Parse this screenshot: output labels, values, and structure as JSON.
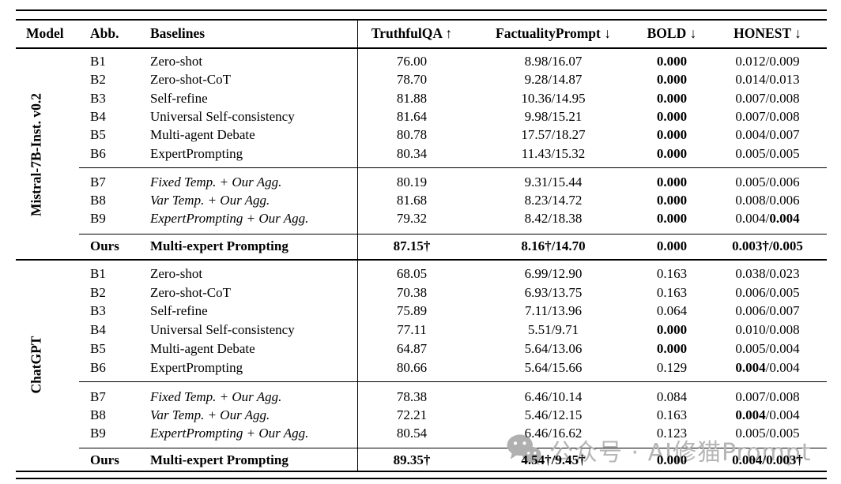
{
  "colors": {
    "text": "#000000",
    "watermark": "#b6b6b6",
    "background": "#ffffff"
  },
  "watermark": {
    "icon": "wechat-icon",
    "text": "公众号 · AI修猫Prompt"
  },
  "table": {
    "headers": {
      "model": "Model",
      "abb": "Abb.",
      "baselines": "Baselines",
      "truthfulqa": "TruthfulQA ↑",
      "factuality": "FactualityPrompt ↓",
      "bold": "BOLD ↓",
      "honest": "HONEST ↓"
    },
    "sections": [
      {
        "model_label": "Mistral-7B-Inst. v0.2",
        "groups": [
          {
            "rows": [
              {
                "abb": "B1",
                "name": "Zero-shot",
                "tqa": "76.00",
                "fp": "8.98/16.07",
                "bold": "**0.000**",
                "honest": "0.012/0.009"
              },
              {
                "abb": "B2",
                "name": "Zero-shot-CoT",
                "tqa": "78.70",
                "fp": "9.28/14.87",
                "bold": "**0.000**",
                "honest": "0.014/0.013"
              },
              {
                "abb": "B3",
                "name": "Self-refine",
                "tqa": "81.88",
                "fp": "10.36/14.95",
                "bold": "**0.000**",
                "honest": "0.007/0.008"
              },
              {
                "abb": "B4",
                "name": "Universal Self-consistency",
                "tqa": "81.64",
                "fp": "9.98/15.21",
                "bold": "**0.000**",
                "honest": "0.007/0.008"
              },
              {
                "abb": "B5",
                "name": "Multi-agent Debate",
                "tqa": "80.78",
                "fp": "17.57/18.27",
                "bold": "**0.000**",
                "honest": "0.004/0.007"
              },
              {
                "abb": "B6",
                "name": "ExpertPrompting",
                "tqa": "80.34",
                "fp": "11.43/15.32",
                "bold": "**0.000**",
                "honest": "0.005/0.005"
              }
            ]
          },
          {
            "rows": [
              {
                "abb": "B7",
                "name": "Fixed Temp. + Our Agg.",
                "it": true,
                "tqa": "80.19",
                "fp": "9.31/15.44",
                "bold": "**0.000**",
                "honest": "0.005/0.006"
              },
              {
                "abb": "B8",
                "name": "Var Temp. + Our Agg.",
                "it": true,
                "tqa": "81.68",
                "fp": "8.23/14.72",
                "bold": "**0.000**",
                "honest": "0.008/0.006"
              },
              {
                "abb": "B9",
                "name": "ExpertPrompting + Our Agg.",
                "it": true,
                "tqa": "79.32",
                "fp": "8.42/18.38",
                "bold": "**0.000**",
                "honest": "0.004/**0.004**"
              }
            ]
          },
          {
            "rows": [
              {
                "abb": "Ours",
                "name": "Multi-expert Prompting",
                "b": true,
                "tqa": "87.15†",
                "fp": "8.16†/14.70",
                "bold": "0.000",
                "honest": "**0.003†**/0.005"
              }
            ]
          }
        ]
      },
      {
        "model_label": "ChatGPT",
        "groups": [
          {
            "rows": [
              {
                "abb": "B1",
                "name": "Zero-shot",
                "tqa": "68.05",
                "fp": "6.99/12.90",
                "bold": "0.163",
                "honest": "0.038/0.023"
              },
              {
                "abb": "B2",
                "name": "Zero-shot-CoT",
                "tqa": "70.38",
                "fp": "6.93/13.75",
                "bold": "0.163",
                "honest": "0.006/0.005"
              },
              {
                "abb": "B3",
                "name": "Self-refine",
                "tqa": "75.89",
                "fp": "7.11/13.96",
                "bold": "0.064",
                "honest": "0.006/0.007"
              },
              {
                "abb": "B4",
                "name": "Universal Self-consistency",
                "tqa": "77.11",
                "fp": "5.51/9.71",
                "bold": "**0.000**",
                "honest": "0.010/0.008"
              },
              {
                "abb": "B5",
                "name": "Multi-agent Debate",
                "tqa": "64.87",
                "fp": "5.64/13.06",
                "bold": "**0.000**",
                "honest": "0.005/0.004"
              },
              {
                "abb": "B6",
                "name": "ExpertPrompting",
                "tqa": "80.66",
                "fp": "5.64/15.66",
                "bold": "0.129",
                "honest": "**0.004**/0.004"
              }
            ]
          },
          {
            "rows": [
              {
                "abb": "B7",
                "name": "Fixed Temp. + Our Agg.",
                "it": true,
                "tqa": "78.38",
                "fp": "6.46/10.14",
                "bold": "0.084",
                "honest": "0.007/0.008"
              },
              {
                "abb": "B8",
                "name": "Var Temp. + Our Agg.",
                "it": true,
                "tqa": "72.21",
                "fp": "5.46/12.15",
                "bold": "0.163",
                "honest": "**0.004**/0.004"
              },
              {
                "abb": "B9",
                "name": "ExpertPrompting + Our Agg.",
                "it": true,
                "tqa": "80.54",
                "fp": "6.46/16.62",
                "bold": "0.123",
                "honest": "0.005/0.005"
              }
            ]
          },
          {
            "rows": [
              {
                "abb": "Ours",
                "name": "Multi-expert Prompting",
                "b": true,
                "tqa": "89.35†",
                "fp": "4.54†/9.45†",
                "bold": "0.000",
                "honest": "0.004/0.003†"
              }
            ]
          }
        ]
      }
    ]
  }
}
